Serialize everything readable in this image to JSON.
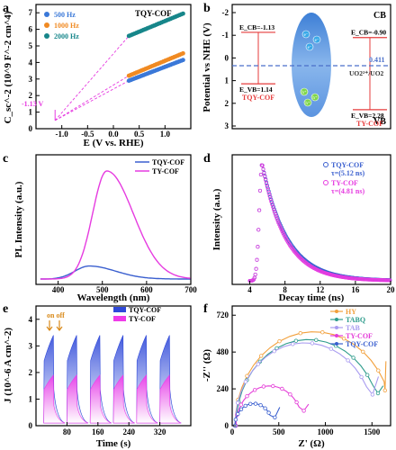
{
  "chart_data": [
    {
      "panel": "a",
      "type": "line",
      "annotation": "TQY-COF",
      "xlabel": "E (V vs. RHE)",
      "ylabel": "C_sc^-2 (10^9 F^-2 cm^4)",
      "xlim": [
        -1.5,
        1.5
      ],
      "ylim": [
        0,
        7.5
      ],
      "xticks": [
        -1.0,
        -0.5,
        0.0,
        0.5,
        1.0
      ],
      "yticks": [
        0,
        1,
        2,
        3,
        4,
        5,
        6,
        7
      ],
      "intercept_label": "-1.13 V",
      "intercept_x": -1.13,
      "fit_range": [
        0.3,
        1.35
      ],
      "series": [
        {
          "name": "500 Hz",
          "color": "#3a78d8",
          "values": [
            [
              0.3,
              2.9
            ],
            [
              1.35,
              4.15
            ]
          ]
        },
        {
          "name": "1000 Hz",
          "color": "#f08a22",
          "values": [
            [
              0.3,
              3.2
            ],
            [
              1.35,
              4.55
            ]
          ]
        },
        {
          "name": "2000 Hz",
          "color": "#17868a",
          "values": [
            [
              0.3,
              5.6
            ],
            [
              1.35,
              6.95
            ]
          ]
        }
      ]
    },
    {
      "panel": "b",
      "type": "diagram",
      "ylabel": "Potential vs NHE (V)",
      "ylim": [
        -2,
        3
      ],
      "yticks": [
        -2,
        -1,
        0,
        1,
        2,
        3
      ],
      "cb_label": "CB",
      "vb_label": "VB",
      "ref_value": "0.411",
      "ref_label": "UO2²⁺/UO2",
      "tqy": {
        "name": "TQY-COF",
        "ecb": -1.13,
        "evb": 1.14,
        "ecb_label": "E_CB=-1.13",
        "evb_label": "E_VB=1.14"
      },
      "ty": {
        "name": "TY-COF",
        "ecb": -0.9,
        "evb": 2.28,
        "ecb_label": "E_CB=-0.90",
        "evb_label": "E_VB=2.28"
      },
      "electron_symbol": "e⁻",
      "hole_symbol": "h⁺"
    },
    {
      "panel": "c",
      "type": "line",
      "xlabel": "Wavelength (nm)",
      "ylabel": "PL Intensity (a.u.)",
      "xlim": [
        350,
        700
      ],
      "xticks": [
        400,
        500,
        600,
        700
      ],
      "series": [
        {
          "name": "TQY-COF",
          "color": "#3a5fcf",
          "peak": 470,
          "height": 0.12
        },
        {
          "name": "TY-COF",
          "color": "#e63be0",
          "peak": 510,
          "height": 1.0
        }
      ]
    },
    {
      "panel": "d",
      "type": "scatter",
      "xlabel": "Decay time (ns)",
      "ylabel": "Intensity (a.u.)",
      "xlim": [
        2,
        20
      ],
      "xticks": [
        4,
        8,
        12,
        16,
        20
      ],
      "series": [
        {
          "name": "TQY-COF",
          "tau_label": "τ=(5.12 ns)",
          "tau": 5.12,
          "color": "#3a5fcf"
        },
        {
          "name": "TY-COF",
          "tau_label": "τ=(4.81 ns)",
          "tau": 4.81,
          "color": "#e63be0"
        }
      ]
    },
    {
      "panel": "e",
      "type": "area",
      "xlabel": "Time (s)",
      "ylabel": "J (10^-6 A cm^-2)",
      "xlim": [
        0,
        400
      ],
      "ylim": [
        0,
        4.5
      ],
      "xticks": [
        80,
        160,
        240,
        320
      ],
      "yticks": [
        0,
        1,
        2,
        3,
        4
      ],
      "annotation": "on off",
      "cycles": 6,
      "series": [
        {
          "name": "TQY-COF",
          "color": "#2f49d9",
          "peak": 3.4
        },
        {
          "name": "TY-COF",
          "color": "#ef3be8",
          "peak": 1.9
        }
      ]
    },
    {
      "panel": "f",
      "type": "line",
      "xlabel": "Z' (Ω)",
      "ylabel": "-Z'' (Ω)",
      "xlim": [
        0,
        1700
      ],
      "ylim": [
        0,
        780
      ],
      "xticks": [
        0,
        500,
        1000,
        1500
      ],
      "yticks": [
        0,
        240,
        480,
        720
      ],
      "series": [
        {
          "name": "HY",
          "color": "#f2a03c",
          "center": 880,
          "radius": 850,
          "tail": [
            1650,
            420
          ]
        },
        {
          "name": "TABQ",
          "color": "#2e9c8c",
          "center": 820,
          "radius": 780,
          "tail": [
            1620,
            260
          ]
        },
        {
          "name": "TAB",
          "color": "#a99cf0",
          "center": 780,
          "radius": 750,
          "tail": [
            1570,
            320
          ]
        },
        {
          "name": "TY-COF",
          "color": "#e43bd8",
          "center": 400,
          "radius": 360,
          "tail": [
            820,
            140
          ]
        },
        {
          "name": "TQY-COF",
          "color": "#3a5fcf",
          "center": 230,
          "radius": 200,
          "tail": [
            510,
            120
          ]
        }
      ]
    }
  ]
}
